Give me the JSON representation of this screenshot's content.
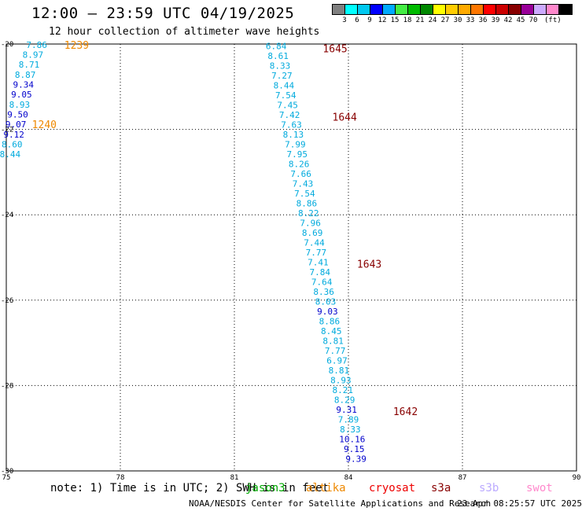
{
  "header": {
    "title": "12:00 – 23:59 UTC 04/19/2025",
    "subtitle": "12 hour collection of altimeter wave heights"
  },
  "legend": {
    "colors": [
      "#808080",
      "#00ffff",
      "#00c8f0",
      "#0000ff",
      "#00aaff",
      "#44ee44",
      "#00bb00",
      "#008800",
      "#ffff00",
      "#ffcc00",
      "#ffaa00",
      "#ff7700",
      "#ff0000",
      "#cc0000",
      "#880000",
      "#990099",
      "#ccaaff",
      "#ff88cc",
      "#000000"
    ],
    "labels": [
      "3",
      "6",
      "9",
      "12",
      "15",
      "18",
      "21",
      "24",
      "27",
      "30",
      "33",
      "36",
      "39",
      "42",
      "45",
      "70"
    ],
    "unit": "(ft)"
  },
  "chart_data": {
    "type": "scatter",
    "x_ticks": [
      "75",
      "78",
      "81",
      "84",
      "87",
      "90"
    ],
    "y_ticks": [
      "-20",
      "-22",
      "-24",
      "-26",
      "-28",
      "-30"
    ],
    "xlim": [
      75,
      90
    ],
    "ylim": [
      -30,
      -20
    ],
    "points": [
      {
        "x": 75.8,
        "y": -20.02,
        "label": "7.86",
        "color": "#00aadd"
      },
      {
        "x": 75.7,
        "y": -20.25,
        "label": "8.97",
        "color": "#00aadd"
      },
      {
        "x": 75.6,
        "y": -20.48,
        "label": "8.71",
        "color": "#00aadd"
      },
      {
        "x": 75.5,
        "y": -20.72,
        "label": "8.87",
        "color": "#00aadd"
      },
      {
        "x": 75.45,
        "y": -20.95,
        "label": "9.34",
        "color": "#0000cc"
      },
      {
        "x": 75.4,
        "y": -21.18,
        "label": "9.05",
        "color": "#0000cc"
      },
      {
        "x": 75.35,
        "y": -21.42,
        "label": "8.93",
        "color": "#00aadd"
      },
      {
        "x": 75.3,
        "y": -21.65,
        "label": "9.50",
        "color": "#0000cc"
      },
      {
        "x": 75.25,
        "y": -21.88,
        "label": "9.07",
        "color": "#0000cc"
      },
      {
        "x": 75.2,
        "y": -22.12,
        "label": "9.12",
        "color": "#0000cc"
      },
      {
        "x": 75.15,
        "y": -22.35,
        "label": "8.60",
        "color": "#00aadd"
      },
      {
        "x": 75.1,
        "y": -22.58,
        "label": "8.44",
        "color": "#00aadd"
      },
      {
        "x": 82.1,
        "y": -20.05,
        "label": "6.84",
        "color": "#00aadd"
      },
      {
        "x": 82.15,
        "y": -20.28,
        "label": "8.61",
        "color": "#00aadd"
      },
      {
        "x": 82.2,
        "y": -20.51,
        "label": "8.33",
        "color": "#00aadd"
      },
      {
        "x": 82.25,
        "y": -20.74,
        "label": "7.27",
        "color": "#00aadd"
      },
      {
        "x": 82.3,
        "y": -20.97,
        "label": "8.44",
        "color": "#00aadd"
      },
      {
        "x": 82.35,
        "y": -21.2,
        "label": "7.54",
        "color": "#00aadd"
      },
      {
        "x": 82.4,
        "y": -21.43,
        "label": "7.45",
        "color": "#00aadd"
      },
      {
        "x": 82.45,
        "y": -21.66,
        "label": "7.42",
        "color": "#00aadd"
      },
      {
        "x": 82.5,
        "y": -21.89,
        "label": "7.63",
        "color": "#00aadd"
      },
      {
        "x": 82.55,
        "y": -22.12,
        "label": "8.13",
        "color": "#00aadd"
      },
      {
        "x": 82.6,
        "y": -22.35,
        "label": "7.99",
        "color": "#00aadd"
      },
      {
        "x": 82.65,
        "y": -22.58,
        "label": "7.95",
        "color": "#00aadd"
      },
      {
        "x": 82.7,
        "y": -22.81,
        "label": "8.26",
        "color": "#00aadd"
      },
      {
        "x": 82.75,
        "y": -23.04,
        "label": "7.66",
        "color": "#00aadd"
      },
      {
        "x": 82.8,
        "y": -23.27,
        "label": "7.43",
        "color": "#00aadd"
      },
      {
        "x": 82.85,
        "y": -23.5,
        "label": "7.54",
        "color": "#00aadd"
      },
      {
        "x": 82.9,
        "y": -23.73,
        "label": "8.86",
        "color": "#00aadd"
      },
      {
        "x": 82.95,
        "y": -23.96,
        "label": "8.22",
        "color": "#00aadd"
      },
      {
        "x": 83.0,
        "y": -24.19,
        "label": "7.96",
        "color": "#00aadd"
      },
      {
        "x": 83.05,
        "y": -24.42,
        "label": "8.69",
        "color": "#00aadd"
      },
      {
        "x": 83.1,
        "y": -24.65,
        "label": "7.44",
        "color": "#00aadd"
      },
      {
        "x": 83.15,
        "y": -24.88,
        "label": "7.77",
        "color": "#00aadd"
      },
      {
        "x": 83.2,
        "y": -25.11,
        "label": "7.41",
        "color": "#00aadd"
      },
      {
        "x": 83.25,
        "y": -25.34,
        "label": "7.84",
        "color": "#00aadd"
      },
      {
        "x": 83.3,
        "y": -25.57,
        "label": "7.64",
        "color": "#00aadd"
      },
      {
        "x": 83.35,
        "y": -25.8,
        "label": "8.36",
        "color": "#00aadd"
      },
      {
        "x": 83.4,
        "y": -26.03,
        "label": "8.03",
        "color": "#00aadd"
      },
      {
        "x": 83.45,
        "y": -26.26,
        "label": "9.03",
        "color": "#0000cc"
      },
      {
        "x": 83.5,
        "y": -26.49,
        "label": "8.86",
        "color": "#00aadd"
      },
      {
        "x": 83.55,
        "y": -26.72,
        "label": "8.45",
        "color": "#00aadd"
      },
      {
        "x": 83.6,
        "y": -26.95,
        "label": "8.81",
        "color": "#00aadd"
      },
      {
        "x": 83.65,
        "y": -27.18,
        "label": "7.77",
        "color": "#00aadd"
      },
      {
        "x": 83.7,
        "y": -27.41,
        "label": "6.97",
        "color": "#00aadd"
      },
      {
        "x": 83.75,
        "y": -27.64,
        "label": "8.81",
        "color": "#00aadd"
      },
      {
        "x": 83.8,
        "y": -27.87,
        "label": "8.93",
        "color": "#00aadd"
      },
      {
        "x": 83.85,
        "y": -28.1,
        "label": "8.21",
        "color": "#00aadd"
      },
      {
        "x": 83.9,
        "y": -28.33,
        "label": "8.29",
        "color": "#00aadd"
      },
      {
        "x": 83.95,
        "y": -28.56,
        "label": "9.31",
        "color": "#0000cc"
      },
      {
        "x": 84.0,
        "y": -28.79,
        "label": "7.89",
        "color": "#00aadd"
      },
      {
        "x": 84.05,
        "y": -29.02,
        "label": "8.33",
        "color": "#00aadd"
      },
      {
        "x": 84.1,
        "y": -29.25,
        "label": "10.16",
        "color": "#0000cc"
      },
      {
        "x": 84.15,
        "y": -29.48,
        "label": "9.15",
        "color": "#0000cc"
      },
      {
        "x": 84.2,
        "y": -29.71,
        "label": "9.39",
        "color": "#0000cc"
      }
    ],
    "annotations": [
      {
        "x": 76.85,
        "y": -20.02,
        "label": "1239",
        "color": "#ee8800"
      },
      {
        "x": 76.0,
        "y": -21.88,
        "label": "1240",
        "color": "#ee8800"
      },
      {
        "x": 83.65,
        "y": -20.1,
        "label": "1645",
        "color": "#880000"
      },
      {
        "x": 83.9,
        "y": -21.7,
        "label": "1644",
        "color": "#880000"
      },
      {
        "x": 84.55,
        "y": -25.15,
        "label": "1643",
        "color": "#880000"
      },
      {
        "x": 85.5,
        "y": -28.6,
        "label": "1642",
        "color": "#880000"
      }
    ]
  },
  "footer": {
    "note": "note:  1) Time is in UTC; 2) SWH is in feet",
    "satellites": [
      {
        "name": "jason3",
        "color": "#00aa00"
      },
      {
        "name": "altika",
        "color": "#ee8800"
      },
      {
        "name": "cryosat",
        "color": "#ee0000"
      },
      {
        "name": "s3a",
        "color": "#880000"
      },
      {
        "name": "s3b",
        "color": "#bbaaff"
      },
      {
        "name": "swot",
        "color": "#ff88cc"
      }
    ],
    "credit": "NOAA/NESDIS Center for Satellite Applications and Research",
    "timestamp": "23 Apr 08:25:57 UTC 2025"
  }
}
